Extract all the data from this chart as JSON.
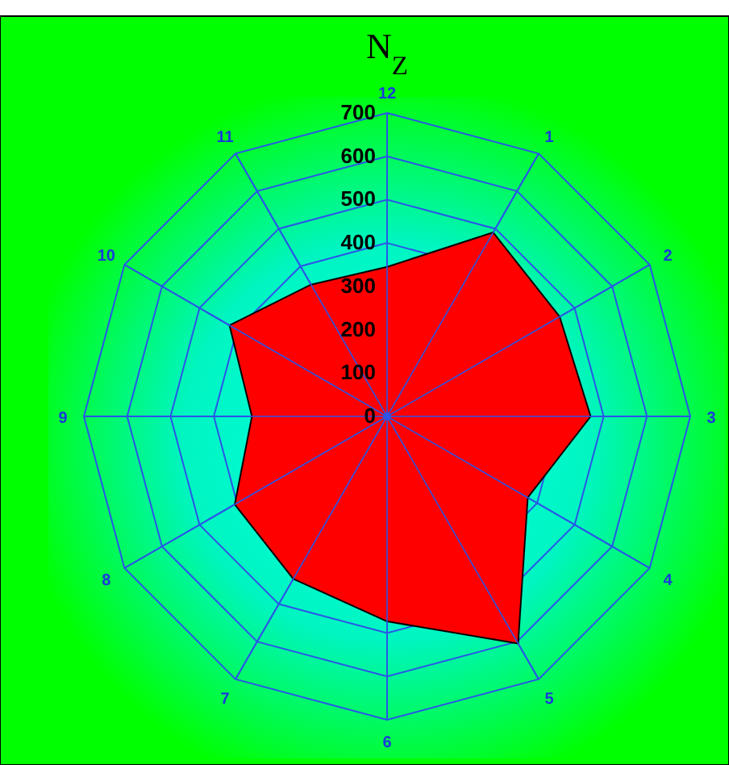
{
  "chart_data": {
    "type": "radar",
    "title": "N$_{Z}$",
    "categories": [
      "12",
      "1",
      "2",
      "3",
      "4",
      "5",
      "6",
      "7",
      "8",
      "9",
      "10",
      "11"
    ],
    "series": [
      {
        "color": "#ff0000",
        "values": [
          345,
          490,
          460,
          470,
          375,
          605,
          473,
          433,
          406,
          312,
          420,
          351
        ]
      }
    ],
    "ylim": [
      0,
      700
    ],
    "yticks": [
      0,
      100,
      200,
      300,
      400,
      500,
      600,
      700
    ],
    "grid": true
  }
}
